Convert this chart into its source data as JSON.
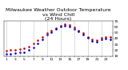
{
  "title": "Milwaukee Weather Outdoor Temperature\nvs Wind Chill\n(24 Hours)",
  "bg_color": "#ffffff",
  "temp_color": "#cc0000",
  "windchill_color": "#0000cc",
  "grid_color": "#888888",
  "temp_x": [
    1,
    2,
    3,
    4,
    5,
    6,
    7,
    8,
    9,
    10,
    11,
    12,
    13,
    14,
    15,
    16,
    17,
    18,
    19,
    20,
    21,
    22,
    23,
    24
  ],
  "temp_y": [
    19,
    20,
    21,
    22,
    23,
    26,
    31,
    37,
    43,
    50,
    54,
    58,
    62,
    64,
    63,
    59,
    54,
    49,
    43,
    39,
    37,
    41,
    43,
    42
  ],
  "wc_x": [
    1,
    2,
    3,
    4,
    5,
    6,
    7,
    8,
    9,
    10,
    11,
    12,
    13,
    14,
    15,
    16,
    17,
    18,
    19,
    20,
    21,
    22,
    23,
    24
  ],
  "wc_y": [
    13,
    14,
    15,
    16,
    17,
    20,
    25,
    32,
    39,
    46,
    51,
    56,
    60,
    62,
    61,
    57,
    52,
    47,
    41,
    36,
    34,
    38,
    40,
    39
  ],
  "ylim": [
    10,
    70
  ],
  "yticks": [
    10,
    20,
    30,
    40,
    50,
    60,
    70
  ],
  "ytick_labels": [
    "10",
    "20",
    "30",
    "40",
    "50",
    "60",
    "70"
  ],
  "vgrid_x": [
    1,
    4,
    7,
    10,
    13,
    16,
    19,
    22
  ],
  "title_fontsize": 4.5,
  "tick_fontsize": 3.2,
  "marker_size": 1.8
}
